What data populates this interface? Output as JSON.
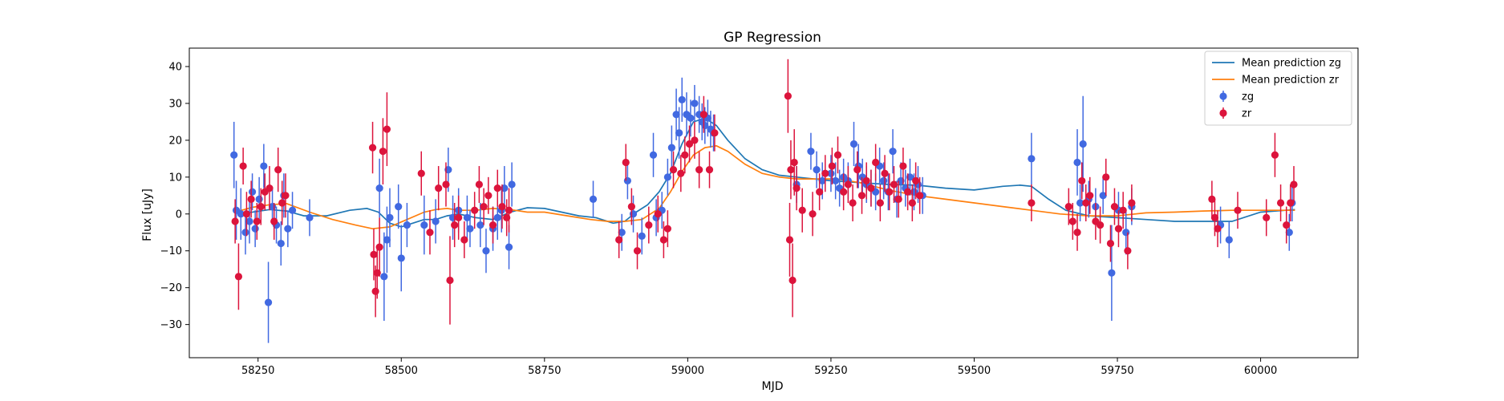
{
  "chart_data": {
    "type": "scatter",
    "title": "GP Regression",
    "xlabel": "MJD",
    "ylabel": "Flux [uJy]",
    "xlim": [
      58130,
      60170
    ],
    "ylim": [
      -39,
      45
    ],
    "xticks": [
      58250,
      58500,
      58750,
      59000,
      59250,
      59500,
      59750,
      60000
    ],
    "yticks": [
      -30,
      -20,
      -10,
      0,
      10,
      20,
      30,
      40
    ],
    "grid": false,
    "legend_position": "top-right",
    "legend": [
      "Mean prediction zg",
      "Mean prediction zr",
      "zg",
      "zr"
    ],
    "series": [
      {
        "name": "Mean prediction zg",
        "kind": "line",
        "color": "#1f77b4",
        "x": [
          58210,
          58240,
          58270,
          58300,
          58330,
          58370,
          58410,
          58440,
          58460,
          58480,
          58500,
          58520,
          58540,
          58560,
          58580,
          58600,
          58630,
          58660,
          58690,
          58720,
          58750,
          58780,
          58810,
          58840,
          58870,
          58890,
          58910,
          58930,
          58950,
          58970,
          58990,
          59010,
          59030,
          59050,
          59070,
          59100,
          59130,
          59160,
          59190,
          59220,
          59250,
          59300,
          59350,
          59400,
          59450,
          59500,
          59550,
          59580,
          59600,
          59630,
          59660,
          59700,
          59750,
          59800,
          59850,
          59900,
          59950,
          60000,
          60060
        ],
        "y": [
          0.2,
          0.5,
          1.2,
          0.8,
          -0.5,
          -0.5,
          1.0,
          1.5,
          0.5,
          -2.5,
          -3.5,
          -2.5,
          -1.5,
          -1.5,
          -0.5,
          0.0,
          -1.0,
          -1.5,
          0.5,
          1.7,
          1.5,
          0.5,
          -0.5,
          -1.0,
          -2.5,
          -2.0,
          0.5,
          2.5,
          6.0,
          11.0,
          19.0,
          25.0,
          26.0,
          24.0,
          20.0,
          15.0,
          12.0,
          10.5,
          10.0,
          9.5,
          9.0,
          8.5,
          8.0,
          7.8,
          7.0,
          6.5,
          7.5,
          7.8,
          7.5,
          4.0,
          1.0,
          -0.5,
          -1.0,
          -1.5,
          -2.0,
          -2.0,
          -2.0,
          0.5,
          1.2
        ]
      },
      {
        "name": "Mean prediction zr",
        "kind": "line",
        "color": "#ff7f0e",
        "x": [
          58210,
          58240,
          58270,
          58300,
          58340,
          58380,
          58420,
          58450,
          58480,
          58510,
          58540,
          58560,
          58580,
          58600,
          58630,
          58660,
          58690,
          58720,
          58750,
          58790,
          58830,
          58860,
          58890,
          58920,
          58950,
          58970,
          58990,
          59010,
          59030,
          59050,
          59070,
          59100,
          59130,
          59160,
          59190,
          59220,
          59260,
          59300,
          59350,
          59400,
          59450,
          59500,
          59550,
          59600,
          59650,
          59700,
          59750,
          59800,
          59850,
          59900,
          59950,
          60000,
          60060
        ],
        "y": [
          0.5,
          1.8,
          2.5,
          2.8,
          0.5,
          -1.5,
          -3.0,
          -4.0,
          -3.5,
          -1.5,
          0.5,
          1.2,
          1.5,
          1.0,
          1.0,
          1.5,
          1.2,
          0.5,
          0.5,
          -0.5,
          -1.5,
          -2.0,
          -2.0,
          -1.5,
          1.5,
          6.0,
          11.5,
          16.0,
          18.0,
          18.5,
          17.0,
          13.5,
          11.0,
          10.0,
          9.5,
          9.5,
          9.5,
          8.5,
          6.5,
          5.0,
          4.0,
          3.0,
          2.0,
          1.0,
          0.0,
          -0.5,
          -0.5,
          0.3,
          0.5,
          0.8,
          1.0,
          1.0,
          1.0
        ]
      },
      {
        "name": "zg",
        "kind": "errorbar",
        "color": "#4169e1",
        "x": [
          58208,
          58212,
          58220,
          58228,
          58235,
          58240,
          58245,
          58252,
          58260,
          58268,
          58275,
          58282,
          58290,
          58295,
          58302,
          58310,
          58340,
          58462,
          58470,
          58475,
          58480,
          58495,
          58500,
          58510,
          58540,
          58560,
          58582,
          58590,
          58600,
          58615,
          58620,
          58638,
          58648,
          58660,
          58668,
          58675,
          58680,
          58688,
          58693,
          58835,
          58885,
          58895,
          58905,
          58920,
          58940,
          58945,
          58955,
          58965,
          58972,
          58980,
          58985,
          58990,
          58998,
          59005,
          59012,
          59020,
          59025,
          59030,
          59035,
          59040,
          59045,
          59190,
          59215,
          59225,
          59235,
          59250,
          59258,
          59265,
          59272,
          59280,
          59290,
          59298,
          59305,
          59312,
          59320,
          59328,
          59335,
          59342,
          59350,
          59358,
          59365,
          59372,
          59380,
          59388,
          59395,
          59402,
          59410,
          59600,
          59680,
          59685,
          59690,
          59700,
          59712,
          59725,
          59740,
          59752,
          59765,
          59775,
          59930,
          59945,
          60050,
          60055
        ],
        "y": [
          16,
          1,
          0,
          -5,
          -2,
          6,
          -4,
          4,
          13,
          -24,
          2,
          -3,
          -8,
          5,
          -4,
          1,
          -1,
          7,
          -17,
          -7,
          -1,
          2,
          -12,
          -3,
          -3,
          -2,
          12,
          -1,
          1,
          -1,
          -4,
          -3,
          -10,
          -4,
          -1,
          1,
          7,
          -9,
          8,
          4,
          -5,
          9,
          0,
          -6,
          16,
          -1,
          1,
          10,
          18,
          27,
          22,
          31,
          27,
          26,
          30,
          27,
          25,
          24,
          26,
          23,
          22,
          8,
          17,
          12,
          9,
          11,
          9,
          7,
          10,
          9,
          19,
          13,
          10,
          8,
          7,
          6,
          13,
          9,
          6,
          17,
          4,
          9,
          7,
          10,
          6,
          8,
          5,
          15,
          14,
          3,
          19,
          4,
          2,
          5,
          -16,
          1,
          -5,
          2,
          -3,
          -7,
          -5,
          3
        ],
        "yerr": [
          9,
          8,
          7,
          6,
          6,
          5,
          5,
          6,
          6,
          11,
          5,
          5,
          6,
          6,
          5,
          5,
          5,
          8,
          12,
          9,
          8,
          6,
          9,
          6,
          8,
          6,
          6,
          6,
          6,
          6,
          5,
          6,
          6,
          6,
          6,
          6,
          6,
          6,
          6,
          5,
          5,
          5,
          5,
          5,
          6,
          5,
          5,
          5,
          6,
          7,
          7,
          6,
          6,
          5,
          5,
          5,
          5,
          5,
          5,
          5,
          5,
          5,
          5,
          5,
          5,
          5,
          5,
          5,
          5,
          5,
          6,
          6,
          5,
          5,
          5,
          5,
          5,
          5,
          5,
          6,
          5,
          5,
          5,
          5,
          5,
          5,
          5,
          7,
          9,
          5,
          13,
          5,
          5,
          5,
          13,
          5,
          6,
          5,
          5,
          5,
          5,
          5
        ]
      },
      {
        "name": "zr",
        "kind": "errorbar",
        "color": "#dc143c",
        "x": [
          58210,
          58216,
          58224,
          58230,
          58238,
          58248,
          58255,
          58262,
          58270,
          58278,
          58285,
          58292,
          58298,
          58450,
          58452,
          58455,
          58458,
          58462,
          58468,
          58475,
          58535,
          58550,
          58565,
          58578,
          58585,
          58593,
          58600,
          58610,
          58628,
          58636,
          58644,
          58652,
          58660,
          58668,
          58676,
          58684,
          58688,
          58880,
          58892,
          58902,
          58912,
          58932,
          58948,
          58958,
          58965,
          58975,
          58988,
          58995,
          59003,
          59012,
          59020,
          59028,
          59038,
          59047,
          59175,
          59178,
          59180,
          59183,
          59186,
          59190,
          59200,
          59218,
          59230,
          59240,
          59252,
          59262,
          59272,
          59280,
          59288,
          59296,
          59304,
          59312,
          59320,
          59328,
          59336,
          59344,
          59352,
          59360,
          59368,
          59376,
          59384,
          59392,
          59398,
          59405,
          59600,
          59665,
          59672,
          59680,
          59688,
          59695,
          59702,
          59712,
          59720,
          59730,
          59738,
          59745,
          59752,
          59760,
          59768,
          59775,
          59915,
          59920,
          59925,
          59960,
          60010,
          60025,
          60035,
          60045,
          60052,
          60058
        ],
        "y": [
          -2,
          -17,
          13,
          0,
          4,
          -2,
          2,
          6,
          7,
          -2,
          12,
          3,
          5,
          18,
          -11,
          -21,
          -16,
          -9,
          17,
          23,
          11,
          -5,
          7,
          8,
          -18,
          -3,
          -1,
          -7,
          1,
          8,
          2,
          5,
          -3,
          7,
          2,
          -1,
          1,
          -7,
          14,
          2,
          -10,
          -3,
          0,
          -7,
          -4,
          12,
          11,
          16,
          19,
          20,
          12,
          27,
          12,
          22,
          32,
          -7,
          12,
          -18,
          14,
          7,
          1,
          0,
          6,
          11,
          13,
          16,
          6,
          8,
          3,
          12,
          5,
          9,
          7,
          14,
          3,
          11,
          6,
          8,
          4,
          13,
          6,
          3,
          9,
          5,
          3,
          2,
          -2,
          -5,
          9,
          3,
          5,
          -2,
          -3,
          10,
          -8,
          2,
          -4,
          1,
          -10,
          3,
          4,
          -1,
          -4,
          1,
          -1,
          16,
          3,
          -3,
          3,
          8
        ],
        "yerr": [
          6,
          9,
          5,
          6,
          5,
          5,
          5,
          5,
          6,
          5,
          6,
          6,
          6,
          7,
          7,
          7,
          7,
          8,
          9,
          10,
          6,
          6,
          6,
          6,
          12,
          6,
          6,
          5,
          5,
          5,
          5,
          5,
          5,
          5,
          6,
          5,
          6,
          5,
          5,
          5,
          5,
          5,
          5,
          5,
          5,
          5,
          5,
          5,
          5,
          5,
          5,
          5,
          5,
          5,
          10,
          10,
          8,
          10,
          9,
          6,
          6,
          6,
          5,
          5,
          5,
          5,
          5,
          5,
          5,
          5,
          5,
          5,
          5,
          5,
          5,
          5,
          5,
          5,
          5,
          5,
          5,
          5,
          5,
          5,
          5,
          5,
          5,
          5,
          5,
          5,
          5,
          5,
          5,
          5,
          5,
          5,
          5,
          5,
          5,
          5,
          5,
          5,
          5,
          5,
          5,
          6,
          5,
          5,
          5,
          5
        ]
      }
    ]
  }
}
